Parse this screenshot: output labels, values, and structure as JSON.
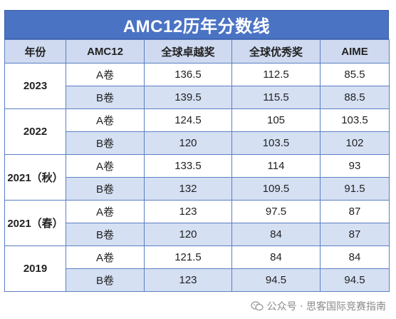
{
  "title": "AMC12历年分数线",
  "headers": [
    "年份",
    "AMC12",
    "全球卓越奖",
    "全球优秀奖",
    "AIME"
  ],
  "groups": [
    {
      "year": "2023",
      "rows": [
        {
          "paper": "A卷",
          "honor_roll_distinction": "136.5",
          "honor_roll": "112.5",
          "aime": "85.5"
        },
        {
          "paper": "B卷",
          "honor_roll_distinction": "139.5",
          "honor_roll": "115.5",
          "aime": "88.5"
        }
      ]
    },
    {
      "year": "2022",
      "rows": [
        {
          "paper": "A卷",
          "honor_roll_distinction": "124.5",
          "honor_roll": "105",
          "aime": "103.5"
        },
        {
          "paper": "B卷",
          "honor_roll_distinction": "120",
          "honor_roll": "103.5",
          "aime": "102"
        }
      ]
    },
    {
      "year": "2021（秋）",
      "rows": [
        {
          "paper": "A卷",
          "honor_roll_distinction": "133.5",
          "honor_roll": "114",
          "aime": "93"
        },
        {
          "paper": "B卷",
          "honor_roll_distinction": "132",
          "honor_roll": "109.5",
          "aime": "91.5"
        }
      ]
    },
    {
      "year": "2021（春）",
      "rows": [
        {
          "paper": "A卷",
          "honor_roll_distinction": "123",
          "honor_roll": "97.5",
          "aime": "87"
        },
        {
          "paper": "B卷",
          "honor_roll_distinction": "120",
          "honor_roll": "84",
          "aime": "87"
        }
      ]
    },
    {
      "year": "2019",
      "rows": [
        {
          "paper": "A卷",
          "honor_roll_distinction": "121.5",
          "honor_roll": "84",
          "aime": "84"
        },
        {
          "paper": "B卷",
          "honor_roll_distinction": "123",
          "honor_roll": "94.5",
          "aime": "94.5"
        }
      ]
    }
  ],
  "watermark": {
    "text": "公众号 · 思客国际竞赛指南",
    "icon": "wechat-icon"
  },
  "colors": {
    "title_bg": "#4a73c4",
    "header_bg": "#cfdaf0",
    "alt_row_bg": "#d6e0f3",
    "border": "#5b7fc4"
  }
}
